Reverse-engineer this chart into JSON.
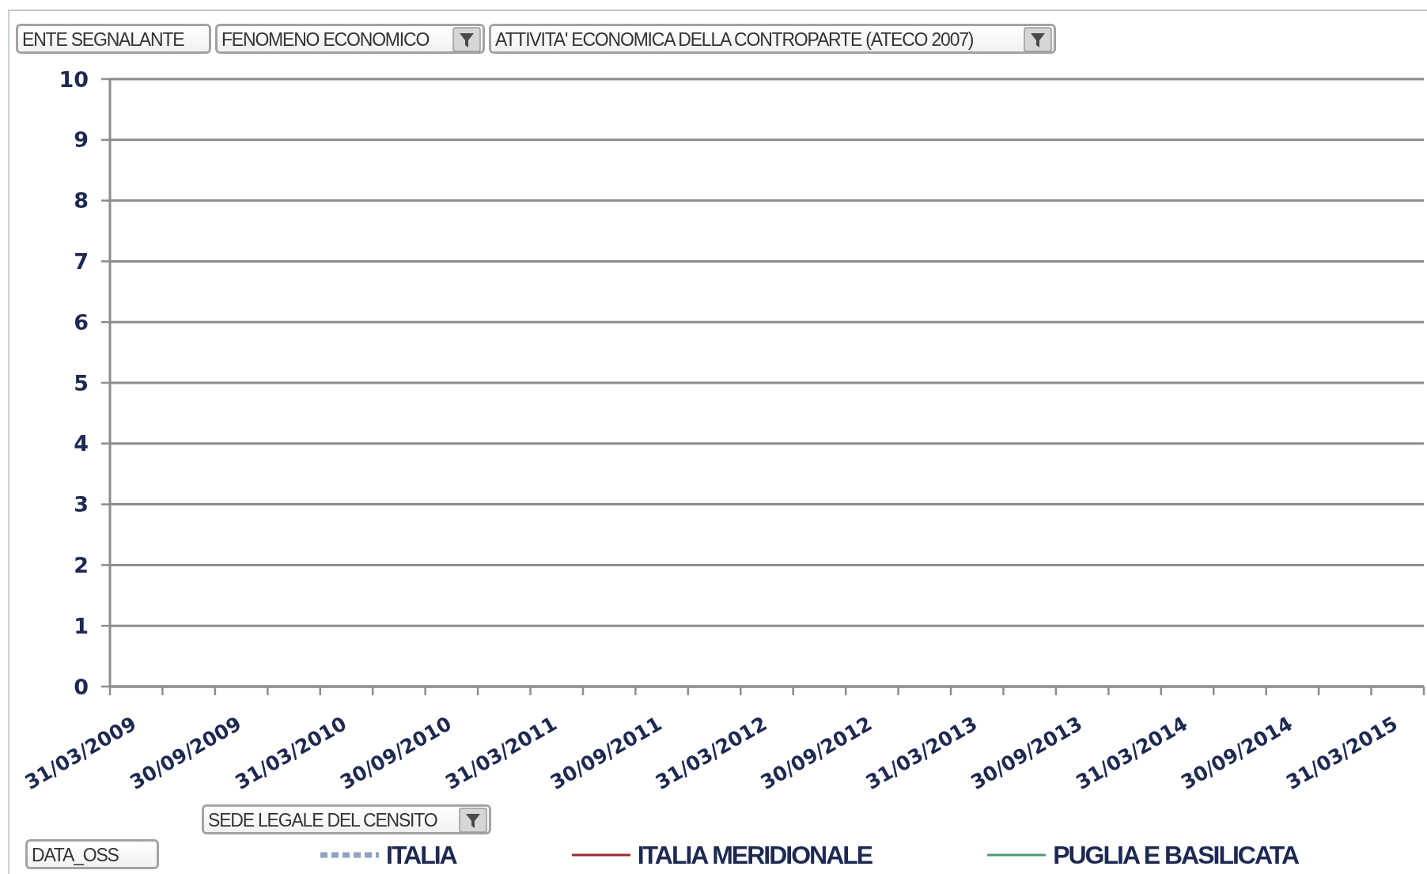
{
  "chart_data": {
    "type": "line",
    "categories": [
      "31/03/2009",
      null,
      "30/09/2009",
      null,
      "31/03/2010",
      null,
      "30/09/2010",
      null,
      "31/03/2011",
      null,
      "30/09/2011",
      null,
      "31/03/2012",
      null,
      "30/09/2012",
      null,
      "31/03/2013",
      null,
      "30/09/2013",
      null,
      "31/03/2014",
      null,
      "30/09/2014",
      null,
      "31/03/2015"
    ],
    "series": [
      {
        "name": "ITALIA",
        "color": "#8ea3bf",
        "line_style": "dotted",
        "values": [
          null,
          null,
          null,
          null,
          null,
          null,
          null,
          null,
          null,
          null,
          null,
          null,
          null,
          null,
          null,
          null,
          null,
          null,
          null,
          null,
          null,
          null,
          null,
          null,
          null
        ]
      },
      {
        "name": "ITALIA MERIDIONALE",
        "color": "#9e2a2f",
        "values": [
          null,
          null,
          null,
          null,
          null,
          null,
          null,
          null,
          null,
          null,
          null,
          null,
          null,
          null,
          null,
          null,
          null,
          null,
          null,
          null,
          null,
          null,
          null,
          null,
          null
        ]
      },
      {
        "name": "PUGLIA E BASILICATA",
        "color": "#4d9d6e",
        "values": [
          null,
          null,
          null,
          null,
          null,
          null,
          null,
          null,
          null,
          null,
          null,
          null,
          null,
          null,
          null,
          null,
          null,
          null,
          null,
          null,
          null,
          null,
          null,
          null,
          null
        ]
      }
    ],
    "ylim": [
      0,
      10
    ],
    "yticks": [
      0,
      1,
      2,
      3,
      4,
      5,
      6,
      7,
      8,
      9,
      10
    ],
    "grid": "y",
    "legend": "bottom",
    "annotations": [
      "ENTE SEGNALANTE",
      "FENOMENO ECONOMICO",
      "ATTIVITA' ECONOMICA DELLA CONTROPARTE (ATECO 2007)",
      "SEDE LEGALE DEL CENSITO",
      "DATA_OSS"
    ]
  }
}
